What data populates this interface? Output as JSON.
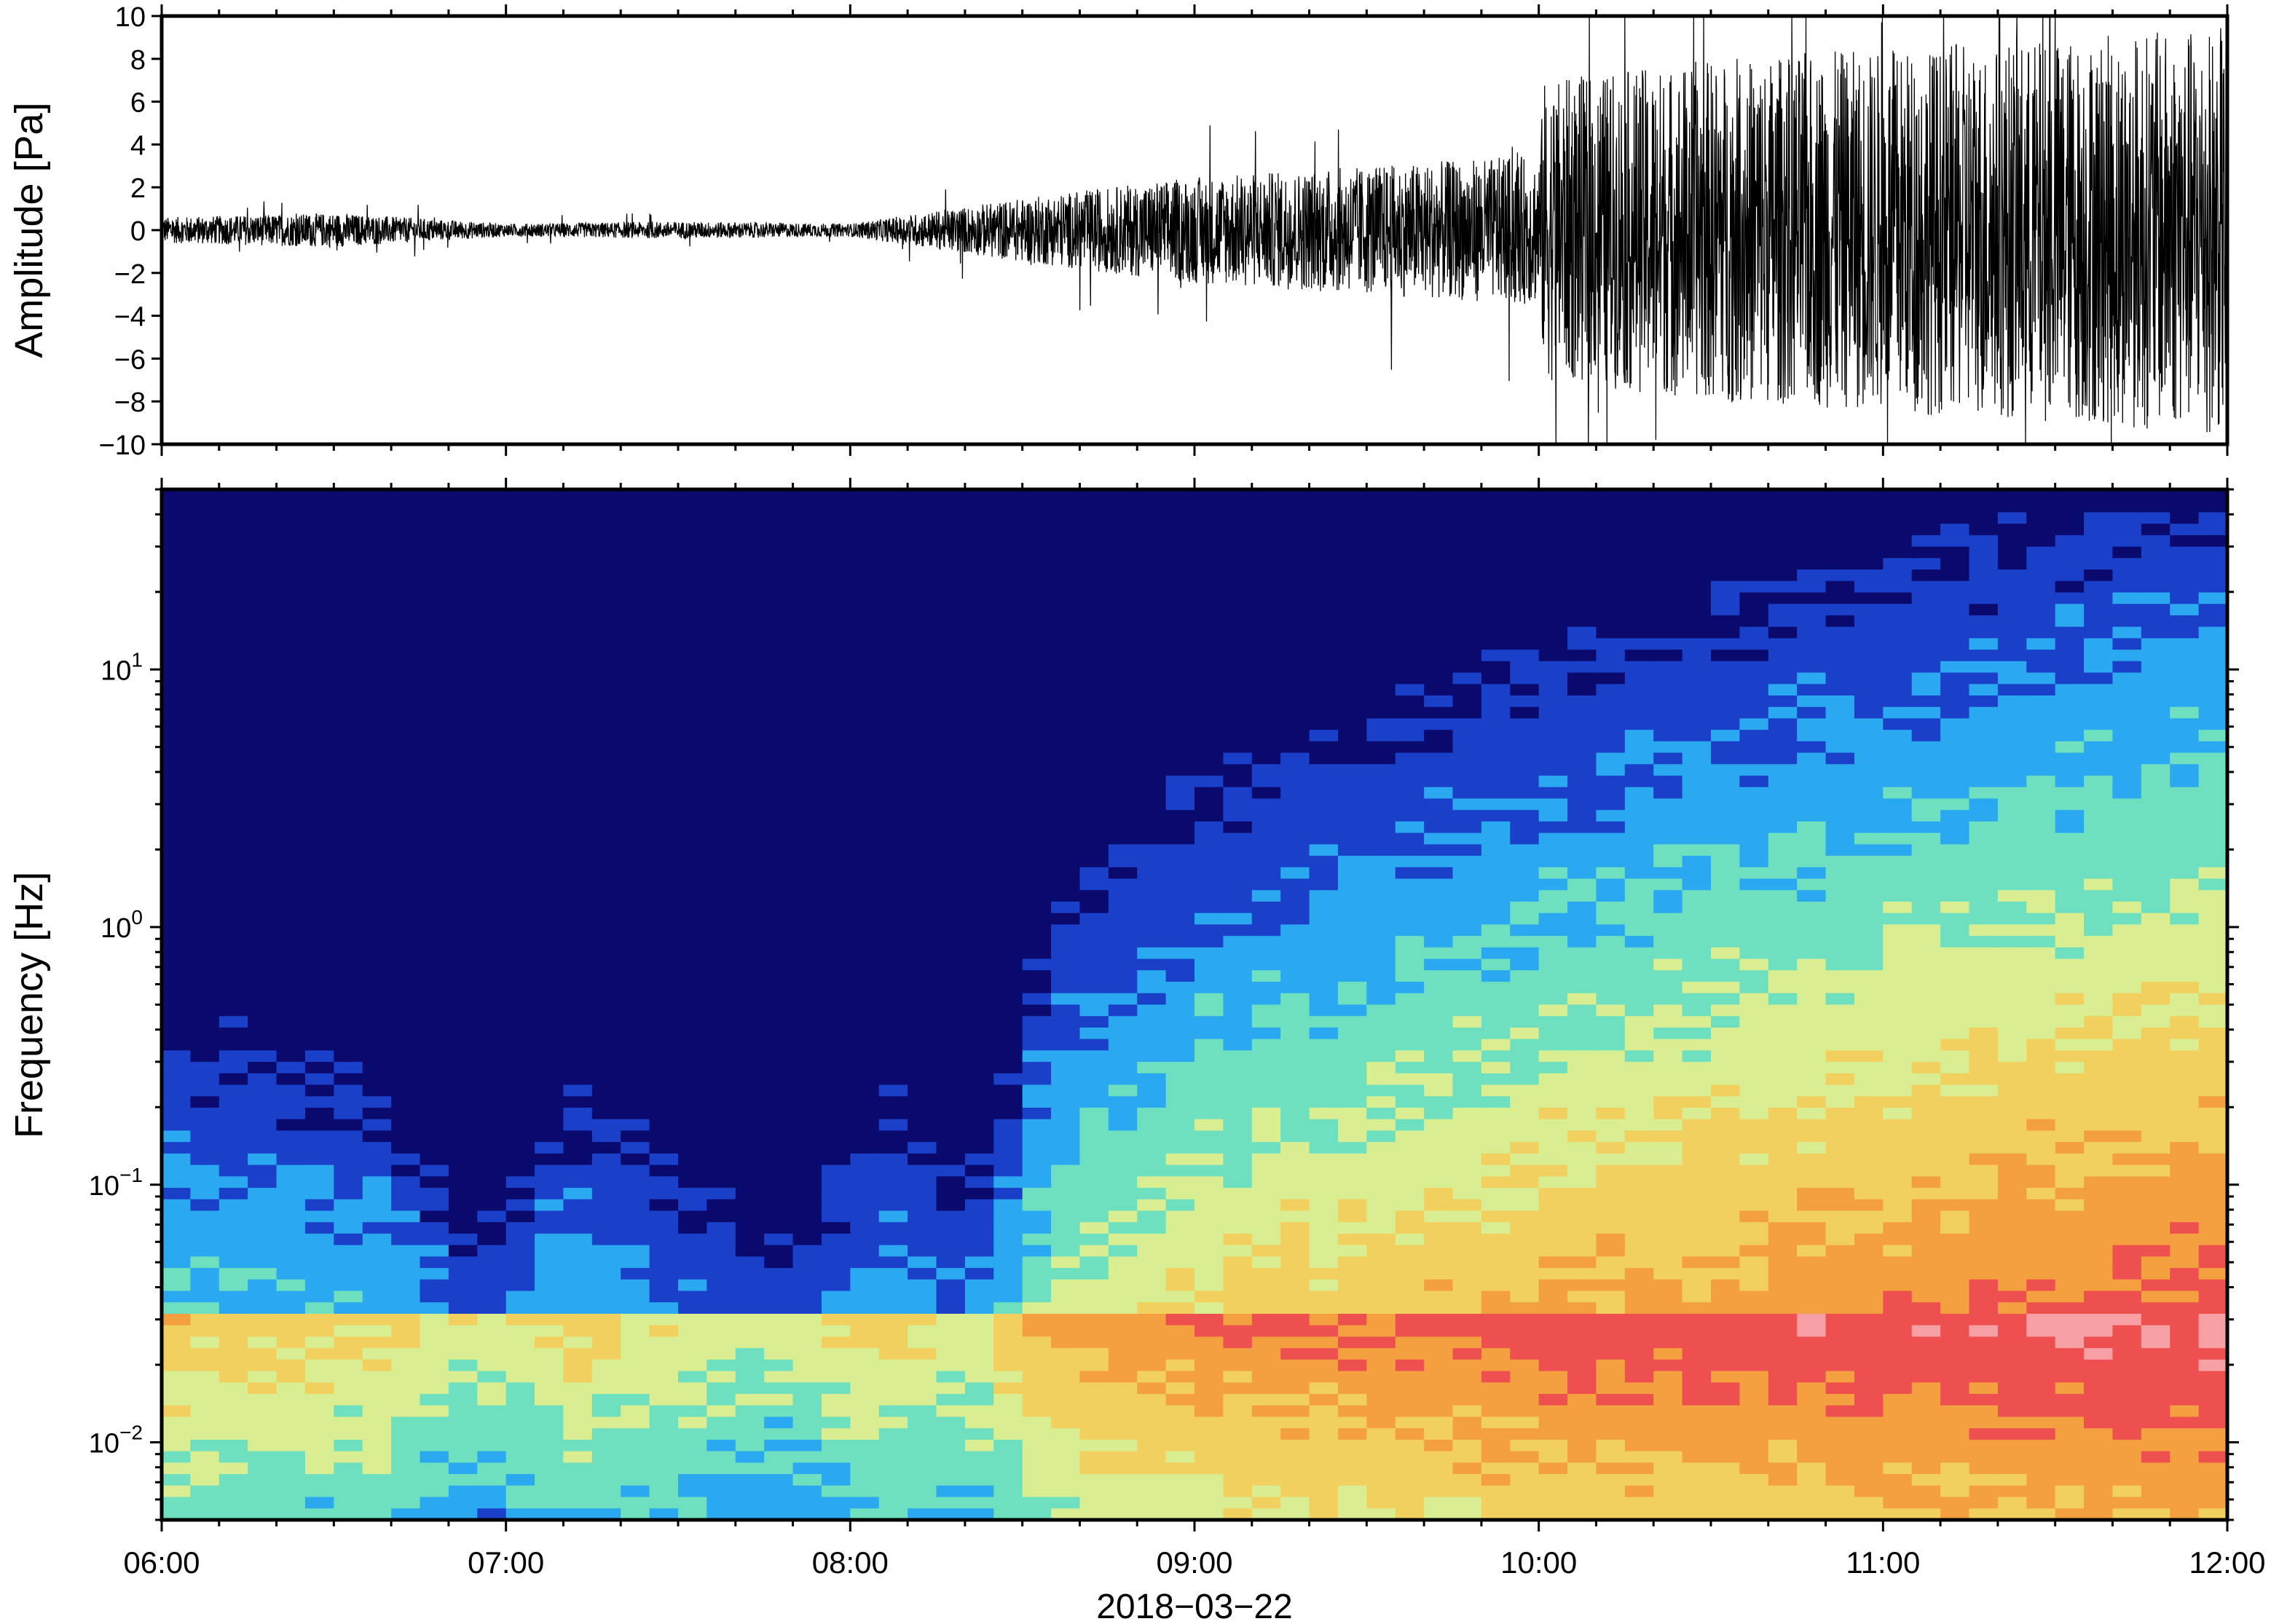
{
  "chart_data": [
    {
      "type": "line",
      "title": "",
      "ylabel": "Amplitude [Pa]",
      "xlabel": "",
      "ylim": [
        -10,
        10
      ],
      "yticks": [
        10,
        8,
        6,
        4,
        2,
        0,
        -2,
        -4,
        -6,
        -8,
        -10
      ],
      "ytick_labels": [
        "10",
        "8",
        "6",
        "4",
        "2",
        "0",
        "−2",
        "−4",
        "−6",
        "−8",
        "−10"
      ],
      "x_range": [
        "06:00",
        "12:00"
      ],
      "envelope": {
        "time": [
          "06:00",
          "06:30",
          "07:00",
          "07:30",
          "08:00",
          "08:30",
          "09:00",
          "09:30",
          "10:00",
          "10:01",
          "10:30",
          "11:00",
          "11:30",
          "12:00"
        ],
        "amplitude": [
          0.6,
          0.8,
          0.3,
          0.4,
          0.3,
          1.5,
          2.5,
          3.0,
          3.5,
          7.0,
          8.0,
          8.5,
          9.0,
          9.5
        ]
      }
    },
    {
      "type": "heatmap",
      "title": "",
      "ylabel": "Frequency [Hz]",
      "xlabel": "2018−03−22",
      "yscale": "log",
      "ylim": [
        0.005,
        50
      ],
      "yticks": [
        0.01,
        0.1,
        1,
        10
      ],
      "ytick_labels": [
        {
          "base": "10",
          "exp": "−2"
        },
        {
          "base": "10",
          "exp": "−1"
        },
        {
          "base": "10",
          "exp": "0"
        },
        {
          "base": "10",
          "exp": "1"
        }
      ],
      "xticks": [
        "06:00",
        "07:00",
        "08:00",
        "09:00",
        "10:00",
        "11:00",
        "12:00"
      ],
      "colormap": [
        "#0a0a6e",
        "#1a3fc8",
        "#2aa8f0",
        "#6ee0c0",
        "#d8ee90",
        "#f2d060",
        "#f5a040",
        "#ee5050",
        "#f6a0a6",
        "#ffe8ec"
      ],
      "time_profile": {
        "time": [
          "06:00",
          "06:40",
          "06:55",
          "07:10",
          "07:50",
          "08:05",
          "08:20",
          "08:35",
          "09:00",
          "10:00",
          "11:00",
          "12:00"
        ],
        "level": [
          0.35,
          0.3,
          0.15,
          0.3,
          0.15,
          0.3,
          0.2,
          0.45,
          0.55,
          0.65,
          0.72,
          0.78
        ]
      }
    }
  ]
}
